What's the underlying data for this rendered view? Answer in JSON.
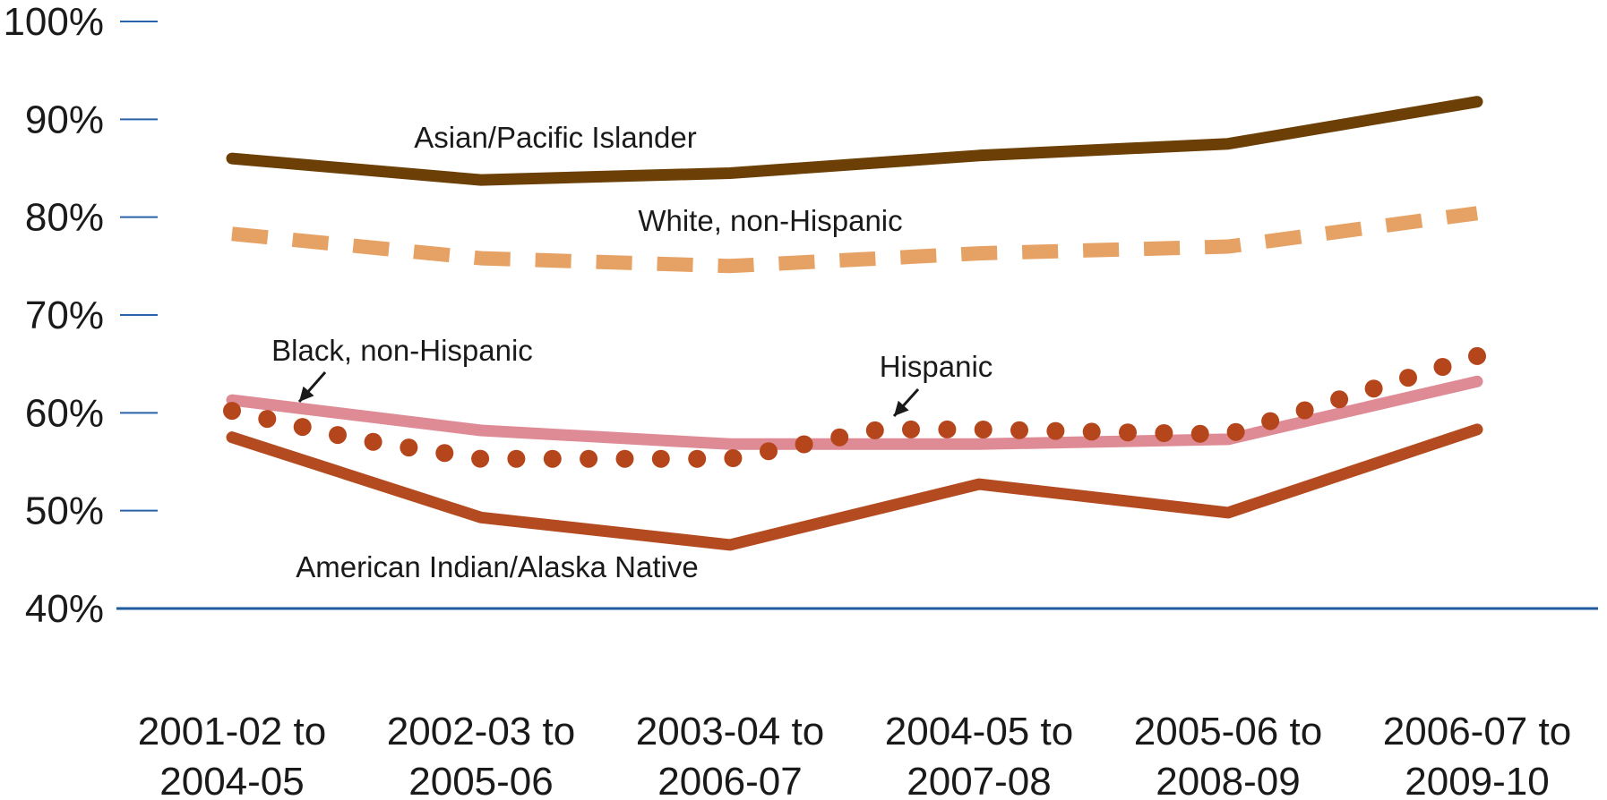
{
  "chart_data": {
    "type": "line",
    "title": "",
    "xlabel": "",
    "ylabel": "",
    "categories": [
      [
        "2001-02 to",
        "2004-05"
      ],
      [
        "2002-03 to",
        "2005-06"
      ],
      [
        "2003-04 to",
        "2006-07"
      ],
      [
        "2004-05 to",
        "2007-08"
      ],
      [
        "2005-06 to",
        "2008-09"
      ],
      [
        "2006-07 to",
        "2009-10"
      ]
    ],
    "y_ticks": [
      "40%",
      "50%",
      "60%",
      "70%",
      "80%",
      "90%",
      "100%"
    ],
    "ylim": [
      40,
      100
    ],
    "grid": false,
    "series": [
      {
        "name": "Asian/Pacific Islander",
        "style": "solid",
        "color": "#6b3f06",
        "values": [
          86,
          83.8,
          84.5,
          86.3,
          87.5,
          91.8
        ],
        "points": [
          [
            0,
            86
          ],
          [
            1,
            83.8
          ],
          [
            2,
            84.5
          ],
          [
            3,
            86.3
          ],
          [
            4,
            87.5
          ],
          [
            5,
            91.8
          ]
        ]
      },
      {
        "name": "White, non-Hispanic",
        "style": "dashed",
        "color": "#e6a264",
        "values": [
          78.3,
          75.8,
          75,
          76.3,
          77,
          80.4
        ],
        "points": [
          [
            0,
            78.3
          ],
          [
            1,
            75.8
          ],
          [
            2,
            75
          ],
          [
            3,
            76.3
          ],
          [
            4,
            77
          ],
          [
            5,
            80.4
          ]
        ]
      },
      {
        "name": "Black, non-Hispanic",
        "style": "solid",
        "color": "#de8b96",
        "values": [
          61.3,
          58.2,
          56.8,
          56.8,
          57.3,
          63.2
        ],
        "points": [
          [
            0,
            61.3
          ],
          [
            1,
            58.2
          ],
          [
            2,
            56.8
          ],
          [
            3,
            56.8
          ],
          [
            4,
            57.3
          ],
          [
            5,
            63.2
          ]
        ]
      },
      {
        "name": "Hispanic",
        "style": "dotted",
        "color": "#b5451b",
        "values": [
          60.2,
          55.3,
          55.3,
          58.3,
          57.7,
          65.8
        ],
        "points": [
          [
            0,
            60.2
          ],
          [
            0.5,
            57.3
          ],
          [
            1,
            55.3
          ],
          [
            2,
            55.3
          ],
          [
            2.6,
            58.3
          ],
          [
            3,
            58.3
          ],
          [
            4,
            57.8
          ],
          [
            5,
            65.8
          ]
        ]
      },
      {
        "name": "American Indian/Alaska Native",
        "style": "solid",
        "color": "#b44a20",
        "values": [
          57.5,
          49.3,
          46.5,
          52.7,
          49.8,
          58.3
        ],
        "points": [
          [
            0,
            57.5
          ],
          [
            1,
            49.3
          ],
          [
            2,
            46.5
          ],
          [
            3,
            52.7
          ],
          [
            4,
            49.8
          ],
          [
            5,
            58.3
          ]
        ]
      }
    ]
  }
}
